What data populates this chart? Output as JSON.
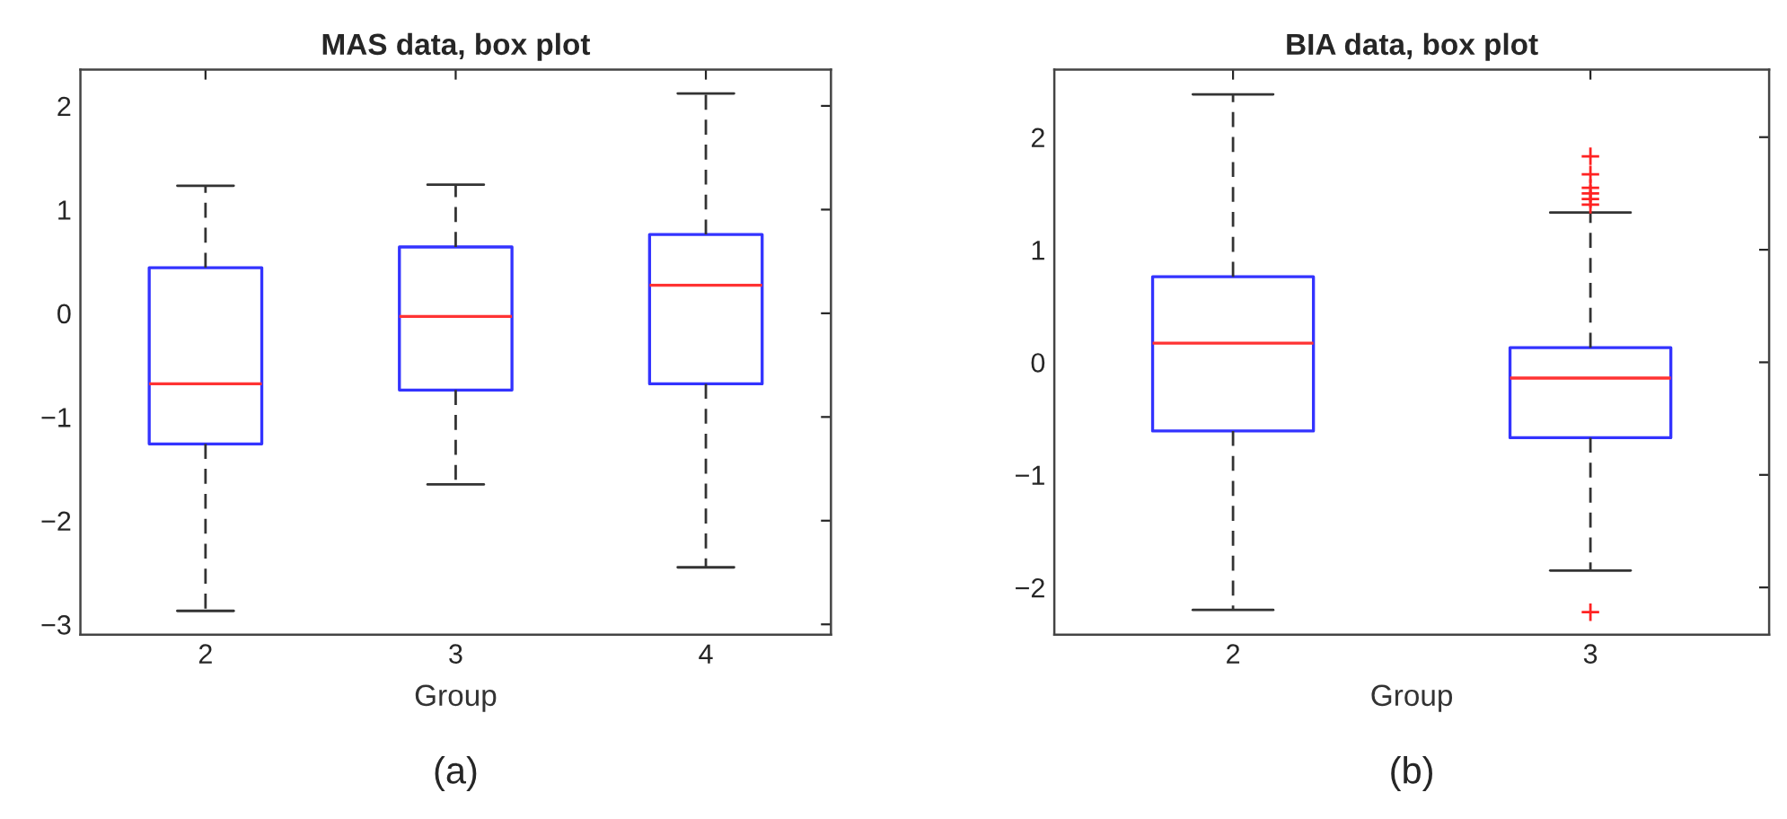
{
  "chart_data": [
    {
      "type": "box",
      "title": "MAS data, box plot",
      "xlabel": "Group",
      "categories": [
        "2",
        "3",
        "4"
      ],
      "ylim": [
        -3.1,
        2.35
      ],
      "yticks": [
        -3,
        -2,
        -1,
        0,
        1,
        2
      ],
      "grid": false,
      "annotations": [
        "(a)"
      ],
      "boxes": [
        {
          "low": -2.87,
          "q1": -1.26,
          "median": -0.68,
          "q3": 0.44,
          "high": 1.23
        },
        {
          "low": -1.65,
          "q1": -0.74,
          "median": -0.03,
          "q3": 0.64,
          "high": 1.24
        },
        {
          "low": -2.45,
          "q1": -0.68,
          "median": 0.27,
          "q3": 0.76,
          "high": 2.12
        }
      ]
    },
    {
      "type": "box",
      "title": "BIA data, box plot",
      "xlabel": "Group",
      "categories": [
        "2",
        "3"
      ],
      "ylim": [
        -2.42,
        2.6
      ],
      "yticks": [
        -2,
        -1,
        0,
        1,
        2
      ],
      "grid": false,
      "annotations": [
        "(b)"
      ],
      "boxes": [
        {
          "low": -2.2,
          "q1": -0.61,
          "median": 0.17,
          "q3": 0.76,
          "high": 2.38
        },
        {
          "low": -1.85,
          "q1": -0.67,
          "median": -0.14,
          "q3": 0.13,
          "high": 1.33,
          "outliers": [
            1.83,
            1.67,
            1.55,
            1.5,
            1.45,
            1.4,
            -2.22
          ]
        }
      ]
    }
  ]
}
